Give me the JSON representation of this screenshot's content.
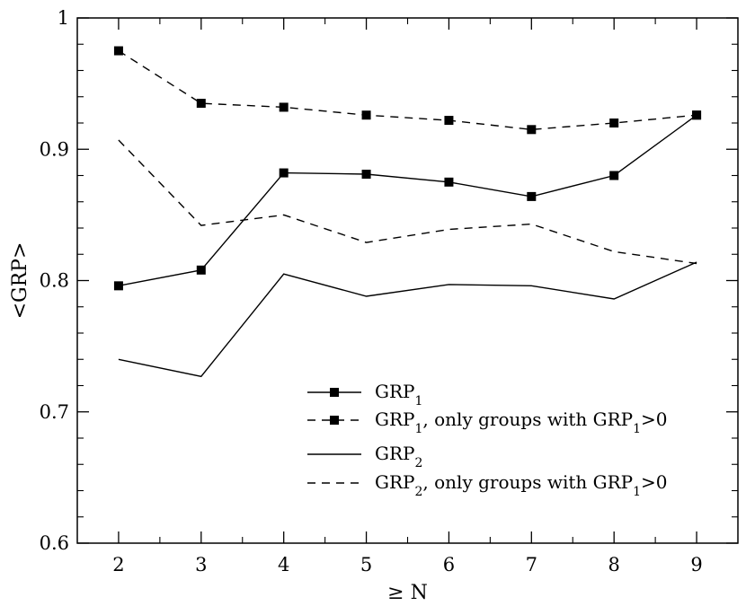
{
  "chart_data": {
    "type": "line",
    "title": "",
    "xlabel": "≥ N",
    "ylabel": "<GRP>",
    "x": [
      2,
      3,
      4,
      5,
      6,
      7,
      8,
      9
    ],
    "xlim": [
      1.5,
      9.5
    ],
    "ylim": [
      0.6,
      1.0
    ],
    "x_ticks": [
      "2",
      "3",
      "4",
      "5",
      "6",
      "7",
      "8",
      "9"
    ],
    "y_ticks": [
      "0.6",
      "0.7",
      "0.8",
      "0.9",
      "1"
    ],
    "y_tick_values": [
      0.6,
      0.7,
      0.8,
      0.9,
      1.0
    ],
    "grid": false,
    "legend_position": "lower-right",
    "series": [
      {
        "label_main": "GRP",
        "label_sub": "1",
        "label_rest": "",
        "values": [
          0.796,
          0.808,
          0.882,
          0.881,
          0.875,
          0.864,
          0.88,
          0.926
        ],
        "line_style": "solid",
        "marker": "square"
      },
      {
        "label_main": "GRP",
        "label_sub": "1",
        "label_rest": ", only groups with GRP",
        "label_sub2": "1",
        "label_end": ">0",
        "values": [
          0.975,
          0.935,
          0.932,
          0.926,
          0.922,
          0.915,
          0.92,
          0.926
        ],
        "line_style": "dashed",
        "marker": "square"
      },
      {
        "label_main": "GRP",
        "label_sub": "2",
        "label_rest": "",
        "values": [
          0.74,
          0.727,
          0.805,
          0.788,
          0.797,
          0.796,
          0.786,
          0.814
        ],
        "line_style": "solid",
        "marker": "none"
      },
      {
        "label_main": "GRP",
        "label_sub": "2",
        "label_rest": ", only groups with GRP",
        "label_sub2": "1",
        "label_end": ">0",
        "values": [
          0.907,
          0.842,
          0.85,
          0.829,
          0.839,
          0.843,
          0.822,
          0.813
        ],
        "line_style": "dashed",
        "marker": "none"
      }
    ]
  }
}
